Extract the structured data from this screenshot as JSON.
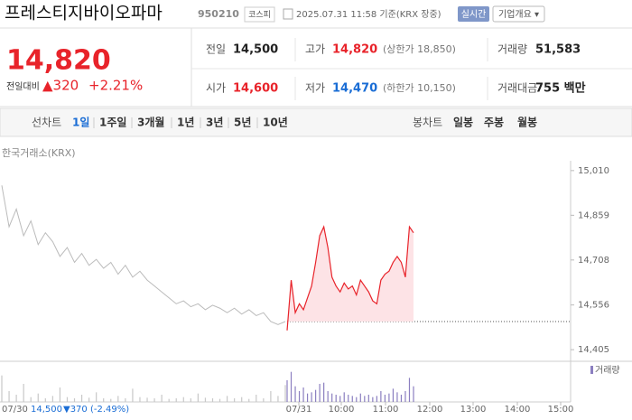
{
  "header": {
    "name": "프레스티지바이오파마",
    "code": "950210",
    "market": "코스피",
    "timestamp": "2025.07.31 11:58 기준(KRX 장중)",
    "realtime": "실시간",
    "company_info": "기업개요 ▾"
  },
  "quote": {
    "price": "14,820",
    "change_label": "전일대비",
    "change": "▲320",
    "change_pct": "+2.21%"
  },
  "stats": [
    {
      "label": "전일",
      "value": "14,500",
      "color": "#222"
    },
    {
      "label": "고가",
      "value": "14,820",
      "color": "#e8232a",
      "note": "(상한가 18,850)"
    },
    {
      "label": "거래량",
      "value": "51,583",
      "color": "#222"
    },
    {
      "label": "시가",
      "value": "14,600",
      "color": "#e8232a"
    },
    {
      "label": "저가",
      "value": "14,470",
      "color": "#1a6dd5",
      "note": "(하한가 10,150)"
    },
    {
      "label": "거래대금",
      "value": "755 백만",
      "color": "#222"
    }
  ],
  "tabs": {
    "line_label": "선차트",
    "periods": [
      "1일",
      "1주일",
      "3개월",
      "1년",
      "3년",
      "5년",
      "10년"
    ],
    "active": 0,
    "candle_label": "봉차트",
    "candles": [
      "일봉",
      "주봉",
      "월봉"
    ]
  },
  "chart": {
    "source": "한국거래소(KRX)",
    "ylim": [
      14381,
      15037
    ],
    "yticks": [
      {
        "value": 15010,
        "label": "15,010"
      },
      {
        "value": 14859,
        "label": "14,859"
      },
      {
        "value": 14708,
        "label": "14,708"
      },
      {
        "value": 14556,
        "label": "14,556"
      },
      {
        "value": 14405,
        "label": "14,405"
      }
    ],
    "prev_close": 14500,
    "xticks": [
      "07/31",
      "10:00",
      "11:00",
      "12:00",
      "13:00",
      "14:00",
      "15:00"
    ],
    "previous_day": {
      "color": "#bbbbbb",
      "values": [
        14960,
        14820,
        14880,
        14790,
        14840,
        14760,
        14800,
        14770,
        14720,
        14750,
        14700,
        14730,
        14690,
        14710,
        14680,
        14700,
        14660,
        14690,
        14650,
        14670,
        14640,
        14620,
        14600,
        14580,
        14560,
        14570,
        14550,
        14560,
        14540,
        14555,
        14545,
        14530,
        14545,
        14525,
        14540,
        14520,
        14530,
        14500,
        14490,
        14500
      ]
    },
    "today": {
      "color": "#e8232a",
      "fill": "#fde3e6",
      "values": [
        14470,
        14640,
        14530,
        14560,
        14540,
        14580,
        14620,
        14700,
        14790,
        14820,
        14750,
        14650,
        14620,
        14600,
        14630,
        14610,
        14620,
        14590,
        14640,
        14620,
        14600,
        14570,
        14560,
        14640,
        14660,
        14670,
        14700,
        14720,
        14700,
        14650,
        14820,
        14800
      ]
    },
    "volume": {
      "label": "거래량",
      "color": "#8b7fc0",
      "vlim": [
        0,
        3000
      ],
      "previous_day": [
        2200,
        900,
        600,
        1500,
        400,
        700,
        300,
        500,
        1200,
        400,
        300,
        600,
        350,
        800,
        300,
        250,
        500,
        300,
        1100,
        400,
        350,
        300,
        600,
        250,
        300,
        400,
        300,
        700,
        350,
        300,
        250,
        500,
        300,
        400,
        250,
        600,
        300,
        900,
        500,
        1400
      ],
      "today": [
        1800,
        2500,
        1300,
        900,
        1200,
        700,
        800,
        1000,
        1500,
        1600,
        900,
        700,
        600,
        500,
        800,
        600,
        500,
        400,
        700,
        500,
        600,
        400,
        500,
        900,
        600,
        700,
        1100,
        800,
        600,
        900,
        2000,
        1300
      ]
    }
  },
  "footer": {
    "date": "07/30",
    "close": "14,500",
    "change": "▼370",
    "change_pct": "(-2.49%)"
  }
}
